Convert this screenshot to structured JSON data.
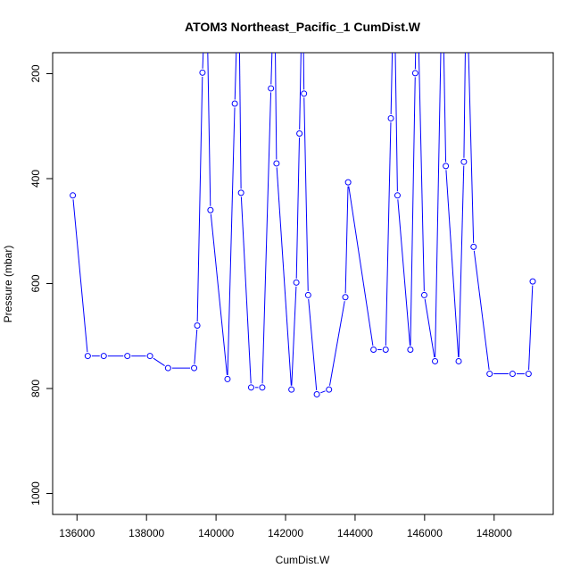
{
  "chart_data": {
    "type": "line",
    "title": "ATOM3 Northeast_Pacific_1 CumDist.W",
    "xlabel": "CumDist.W",
    "ylabel": "Pressure (mbar)",
    "xlim": [
      135300,
      149700
    ],
    "ylim": [
      1040,
      160
    ],
    "y_reversed": true,
    "x_ticks": [
      136000,
      138000,
      140000,
      142000,
      144000,
      146000,
      148000
    ],
    "x_tick_labels": [
      "136000",
      "138000",
      "140000",
      "142000",
      "144000",
      "146000",
      "148000"
    ],
    "y_ticks": [
      200,
      400,
      600,
      800,
      1000
    ],
    "y_tick_labels": [
      "200",
      "400",
      "600",
      "800",
      "1000"
    ],
    "grid": false,
    "legend": "none",
    "series": [
      {
        "color": "#0000ff",
        "marker": "open-circle",
        "x": [
          135880,
          136310,
          136770,
          137450,
          138100,
          138620,
          139370,
          139460,
          139610,
          139720,
          139840,
          140330,
          140540,
          140650,
          140720,
          141010,
          141330,
          141580,
          141680,
          141740,
          142170,
          142310,
          142400,
          142490,
          142530,
          142650,
          142900,
          143250,
          143720,
          143800,
          144530,
          144880,
          145030,
          145120,
          145220,
          145590,
          145730,
          145780,
          145990,
          146300,
          146510,
          146610,
          146980,
          147130,
          147200,
          147410,
          147870,
          148530,
          148990,
          149110
        ],
        "y": [
          432,
          738,
          738,
          738,
          738,
          761,
          761,
          680,
          198,
          0,
          460,
          782,
          257,
          0,
          427,
          798,
          798,
          228,
          0,
          371,
          802,
          598,
          314,
          0,
          238,
          622,
          811,
          802,
          626,
          407,
          726,
          726,
          285,
          0,
          432,
          726,
          199,
          0,
          622,
          748,
          0,
          376,
          748,
          368,
          0,
          530,
          772,
          772,
          772,
          596
        ]
      }
    ]
  }
}
